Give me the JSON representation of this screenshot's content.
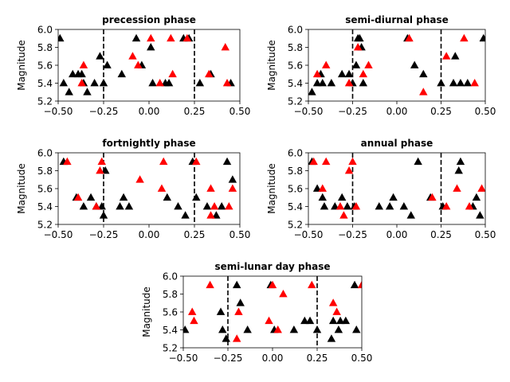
{
  "chart_data": [
    {
      "type": "scatter",
      "title": "precession phase",
      "xlabel": "",
      "ylabel": "Magnitude",
      "xlim": [
        -0.5,
        0.5
      ],
      "ylim": [
        5.2,
        6.0
      ],
      "xticks": [
        "-0.50",
        "-0.25",
        "0.00",
        "0.25",
        "0.50"
      ],
      "yticks": [
        "5.2",
        "5.4",
        "5.6",
        "5.8",
        "6.0"
      ],
      "vlines": [
        -0.25,
        0.25
      ],
      "series": [
        {
          "color": "#000000",
          "marker": "triangle",
          "points": [
            [
              -0.49,
              5.9
            ],
            [
              -0.47,
              5.4
            ],
            [
              -0.44,
              5.3
            ],
            [
              -0.42,
              5.5
            ],
            [
              -0.39,
              5.5
            ],
            [
              -0.37,
              5.5
            ],
            [
              -0.36,
              5.4
            ],
            [
              -0.34,
              5.3
            ],
            [
              -0.3,
              5.4
            ],
            [
              -0.27,
              5.7
            ],
            [
              -0.25,
              5.4
            ],
            [
              -0.23,
              5.6
            ],
            [
              -0.15,
              5.5
            ],
            [
              -0.07,
              5.9
            ],
            [
              -0.04,
              5.6
            ],
            [
              0.01,
              5.8
            ],
            [
              0.02,
              5.4
            ],
            [
              0.09,
              5.4
            ],
            [
              0.11,
              5.4
            ],
            [
              0.19,
              5.9
            ],
            [
              0.22,
              5.9
            ],
            [
              0.28,
              5.4
            ],
            [
              0.34,
              5.5
            ],
            [
              0.45,
              5.4
            ]
          ]
        },
        {
          "color": "#ff0000",
          "marker": "triangle",
          "points": [
            [
              -0.36,
              5.6
            ],
            [
              -0.37,
              5.4
            ],
            [
              -0.09,
              5.7
            ],
            [
              -0.06,
              5.6
            ],
            [
              0.01,
              5.9
            ],
            [
              0.06,
              5.4
            ],
            [
              0.12,
              5.9
            ],
            [
              0.13,
              5.5
            ],
            [
              0.21,
              5.9
            ],
            [
              0.33,
              5.5
            ],
            [
              0.42,
              5.8
            ],
            [
              0.43,
              5.4
            ]
          ]
        }
      ]
    },
    {
      "type": "scatter",
      "title": "semi-diurnal phase",
      "xlabel": "",
      "ylabel": "Magnitude",
      "xlim": [
        -0.5,
        0.5
      ],
      "ylim": [
        5.2,
        6.0
      ],
      "xticks": [
        "-0.50",
        "-0.25",
        "0.00",
        "0.25",
        "0.50"
      ],
      "yticks": [
        "5.2",
        "5.4",
        "5.6",
        "5.8",
        "6.0"
      ],
      "vlines": [
        -0.25,
        0.25
      ],
      "series": [
        {
          "color": "#000000",
          "marker": "triangle",
          "points": [
            [
              -0.48,
              5.3
            ],
            [
              -0.45,
              5.4
            ],
            [
              -0.43,
              5.5
            ],
            [
              -0.42,
              5.4
            ],
            [
              -0.37,
              5.4
            ],
            [
              -0.31,
              5.5
            ],
            [
              -0.27,
              5.5
            ],
            [
              -0.25,
              5.4
            ],
            [
              -0.23,
              5.6
            ],
            [
              -0.22,
              5.9
            ],
            [
              -0.21,
              5.9
            ],
            [
              -0.2,
              5.8
            ],
            [
              -0.19,
              5.4
            ],
            [
              0.06,
              5.9
            ],
            [
              0.1,
              5.6
            ],
            [
              0.15,
              5.5
            ],
            [
              0.25,
              5.4
            ],
            [
              0.32,
              5.4
            ],
            [
              0.33,
              5.7
            ],
            [
              0.36,
              5.4
            ],
            [
              0.4,
              5.4
            ],
            [
              0.49,
              5.9
            ]
          ]
        },
        {
          "color": "#ff0000",
          "marker": "triangle",
          "points": [
            [
              -0.45,
              5.5
            ],
            [
              -0.4,
              5.6
            ],
            [
              -0.27,
              5.4
            ],
            [
              -0.22,
              5.8
            ],
            [
              -0.19,
              5.5
            ],
            [
              -0.16,
              5.6
            ],
            [
              0.07,
              5.9
            ],
            [
              0.15,
              5.3
            ],
            [
              0.28,
              5.7
            ],
            [
              0.38,
              5.9
            ],
            [
              0.44,
              5.4
            ]
          ]
        }
      ]
    },
    {
      "type": "scatter",
      "title": "fortnightly phase",
      "xlabel": "",
      "ylabel": "Magnitude",
      "xlim": [
        -0.5,
        0.5
      ],
      "ylim": [
        5.2,
        6.0
      ],
      "xticks": [
        "-0.50",
        "-0.25",
        "0.00",
        "0.25",
        "0.50"
      ],
      "yticks": [
        "5.2",
        "5.4",
        "5.6",
        "5.8",
        "6.0"
      ],
      "vlines": [
        -0.25,
        0.25
      ],
      "series": [
        {
          "color": "#000000",
          "marker": "triangle",
          "points": [
            [
              -0.47,
              5.9
            ],
            [
              -0.4,
              5.5
            ],
            [
              -0.36,
              5.4
            ],
            [
              -0.32,
              5.5
            ],
            [
              -0.29,
              5.4
            ],
            [
              -0.26,
              5.4
            ],
            [
              -0.25,
              5.3
            ],
            [
              -0.24,
              5.8
            ],
            [
              -0.16,
              5.4
            ],
            [
              -0.14,
              5.5
            ],
            [
              -0.11,
              5.4
            ],
            [
              0.1,
              5.5
            ],
            [
              0.16,
              5.4
            ],
            [
              0.2,
              5.3
            ],
            [
              0.24,
              5.9
            ],
            [
              0.26,
              5.5
            ],
            [
              0.32,
              5.4
            ],
            [
              0.37,
              5.3
            ],
            [
              0.4,
              5.4
            ],
            [
              0.43,
              5.9
            ],
            [
              0.46,
              5.7
            ]
          ]
        },
        {
          "color": "#ff0000",
          "marker": "triangle",
          "points": [
            [
              -0.45,
              5.9
            ],
            [
              -0.39,
              5.5
            ],
            [
              -0.29,
              5.4
            ],
            [
              -0.27,
              5.8
            ],
            [
              -0.26,
              5.9
            ],
            [
              -0.05,
              5.7
            ],
            [
              0.07,
              5.6
            ],
            [
              0.08,
              5.9
            ],
            [
              0.26,
              5.9
            ],
            [
              0.34,
              5.6
            ],
            [
              0.34,
              5.3
            ],
            [
              0.36,
              5.4
            ],
            [
              0.44,
              5.4
            ],
            [
              0.46,
              5.6
            ]
          ]
        }
      ]
    },
    {
      "type": "scatter",
      "title": "annual phase",
      "xlabel": "",
      "ylabel": "Magnitude",
      "xlim": [
        -0.5,
        0.5
      ],
      "ylim": [
        5.2,
        6.0
      ],
      "xticks": [
        "-0.50",
        "-0.25",
        "0.00",
        "0.25",
        "0.50"
      ],
      "yticks": [
        "5.2",
        "5.4",
        "5.6",
        "5.8",
        "6.0"
      ],
      "vlines": [
        -0.25,
        0.25
      ],
      "series": [
        {
          "color": "#000000",
          "marker": "triangle",
          "points": [
            [
              -0.48,
              5.9
            ],
            [
              -0.45,
              5.6
            ],
            [
              -0.42,
              5.5
            ],
            [
              -0.41,
              5.4
            ],
            [
              -0.35,
              5.4
            ],
            [
              -0.31,
              5.5
            ],
            [
              -0.28,
              5.4
            ],
            [
              -0.24,
              5.4
            ],
            [
              -0.1,
              5.4
            ],
            [
              -0.04,
              5.4
            ],
            [
              -0.02,
              5.5
            ],
            [
              0.04,
              5.4
            ],
            [
              0.08,
              5.3
            ],
            [
              0.12,
              5.9
            ],
            [
              0.19,
              5.5
            ],
            [
              0.26,
              5.4
            ],
            [
              0.35,
              5.8
            ],
            [
              0.36,
              5.9
            ],
            [
              0.43,
              5.4
            ],
            [
              0.45,
              5.5
            ],
            [
              0.47,
              5.3
            ]
          ]
        },
        {
          "color": "#ff0000",
          "marker": "triangle",
          "points": [
            [
              -0.47,
              5.9
            ],
            [
              -0.42,
              5.6
            ],
            [
              -0.4,
              5.9
            ],
            [
              -0.32,
              5.4
            ],
            [
              -0.3,
              5.3
            ],
            [
              -0.27,
              5.8
            ],
            [
              -0.25,
              5.9
            ],
            [
              -0.23,
              5.4
            ],
            [
              0.2,
              5.5
            ],
            [
              0.28,
              5.4
            ],
            [
              0.34,
              5.6
            ],
            [
              0.41,
              5.4
            ],
            [
              0.48,
              5.6
            ]
          ]
        }
      ]
    },
    {
      "type": "scatter",
      "title": "semi-lunar day phase",
      "xlabel": "",
      "ylabel": "Magnitude",
      "xlim": [
        -0.5,
        0.5
      ],
      "ylim": [
        5.2,
        6.0
      ],
      "xticks": [
        "-0.50",
        "-0.25",
        "0.00",
        "0.25",
        "0.50"
      ],
      "yticks": [
        "5.2",
        "5.4",
        "5.6",
        "5.8",
        "6.0"
      ],
      "vlines": [
        -0.25,
        0.25
      ],
      "series": [
        {
          "color": "#000000",
          "marker": "triangle",
          "points": [
            [
              -0.49,
              5.4
            ],
            [
              -0.29,
              5.6
            ],
            [
              -0.28,
              5.4
            ],
            [
              -0.26,
              5.3
            ],
            [
              -0.2,
              5.9
            ],
            [
              -0.18,
              5.7
            ],
            [
              -0.14,
              5.4
            ],
            [
              -0.01,
              5.9
            ],
            [
              0.01,
              5.4
            ],
            [
              0.12,
              5.4
            ],
            [
              0.18,
              5.5
            ],
            [
              0.21,
              5.5
            ],
            [
              0.25,
              5.4
            ],
            [
              0.33,
              5.3
            ],
            [
              0.34,
              5.5
            ],
            [
              0.37,
              5.4
            ],
            [
              0.38,
              5.5
            ],
            [
              0.41,
              5.5
            ],
            [
              0.46,
              5.9
            ],
            [
              0.47,
              5.4
            ]
          ]
        },
        {
          "color": "#ff0000",
          "marker": "triangle",
          "points": [
            [
              -0.45,
              5.6
            ],
            [
              -0.44,
              5.5
            ],
            [
              -0.35,
              5.9
            ],
            [
              -0.2,
              5.3
            ],
            [
              -0.19,
              5.6
            ],
            [
              -0.02,
              5.5
            ],
            [
              0.0,
              5.9
            ],
            [
              0.03,
              5.4
            ],
            [
              0.06,
              5.8
            ],
            [
              0.22,
              5.9
            ],
            [
              0.34,
              5.7
            ],
            [
              0.36,
              5.6
            ],
            [
              0.5,
              5.9
            ]
          ]
        }
      ]
    }
  ]
}
